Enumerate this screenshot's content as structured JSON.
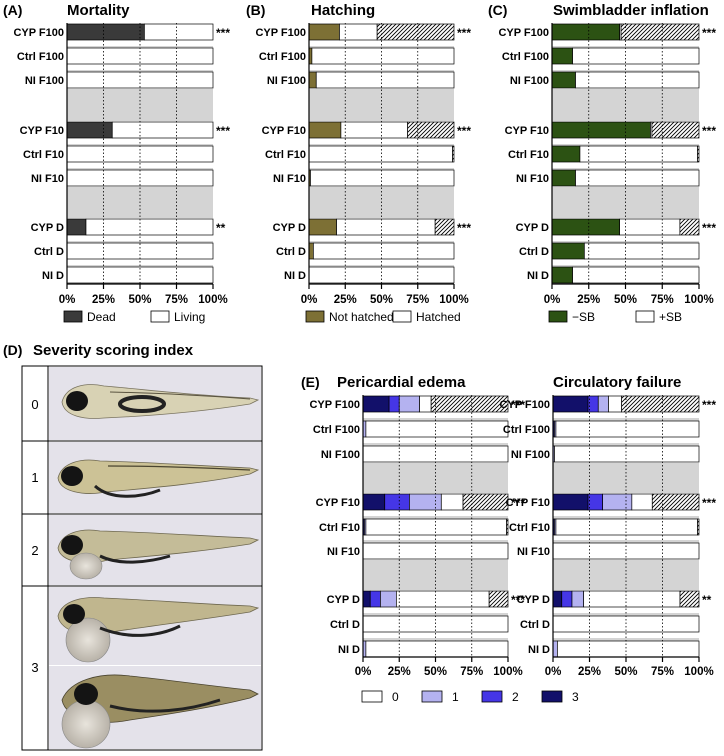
{
  "colors": {
    "dead": "#3a3a3a",
    "not_hatched": "#7d7035",
    "no_sb": "#2c5213",
    "score_1": "#b4b2f0",
    "score_2": "#4536e6",
    "score_3": "#12106a",
    "band": "#d4d4d4",
    "white": "#ffffff"
  },
  "severity": {
    "panel_label": "(D)",
    "title": "Severity scoring index",
    "scores": [
      "0",
      "1",
      "2",
      "3"
    ],
    "images": [
      "zebrafish-larva-score-0",
      "zebrafish-larva-score-1",
      "zebrafish-larva-score-2",
      "zebrafish-larva-score-3a",
      "zebrafish-larva-score-3b"
    ]
  },
  "legend_e": [
    "0",
    "1",
    "2",
    "3"
  ],
  "chart_data": [
    {
      "id": "A",
      "panel_label": "(A)",
      "title": "Mortality",
      "type": "bar",
      "orientation": "horizontal",
      "stacked": true,
      "categories": [
        "CYP F100",
        "Ctrl F100",
        "NI F100",
        "CYP F10",
        "Ctrl F10",
        "NI F10",
        "CYP D",
        "Ctrl D",
        "NI D"
      ],
      "significance": [
        "***",
        "",
        "",
        "***",
        "",
        "",
        "**",
        "",
        ""
      ],
      "series": [
        {
          "name": "Dead",
          "color": "#3a3a3a",
          "values": [
            53,
            0,
            0,
            31,
            0,
            0,
            13,
            0,
            0
          ]
        },
        {
          "name": "Living",
          "color": "#ffffff",
          "values": [
            47,
            100,
            100,
            69,
            100,
            100,
            87,
            100,
            100
          ]
        }
      ],
      "legend": [
        "Dead",
        "Living"
      ],
      "xticks": [
        "0%",
        "25%",
        "50%",
        "75%",
        "100%"
      ],
      "xlim": [
        0,
        100
      ]
    },
    {
      "id": "B",
      "panel_label": "(B)",
      "title": "Hatching",
      "type": "bar",
      "orientation": "horizontal",
      "stacked": true,
      "categories": [
        "CYP F100",
        "Ctrl F100",
        "NI F100",
        "CYP F10",
        "Ctrl F10",
        "NI F10",
        "CYP D",
        "Ctrl D",
        "NI D"
      ],
      "significance": [
        "***",
        "",
        "",
        "***",
        "",
        "",
        "***",
        "",
        ""
      ],
      "series": [
        {
          "name": "Not hatched",
          "color": "#7d7035",
          "values": [
            21,
            2,
            5,
            22,
            0,
            1,
            19,
            3,
            0
          ]
        },
        {
          "name": "Hatched",
          "color": "#ffffff",
          "values": [
            26,
            98,
            95,
            46,
            99,
            99,
            68,
            97,
            100
          ]
        },
        {
          "name": "dead",
          "color": "hatch",
          "values": [
            53,
            0,
            0,
            32,
            1,
            0,
            13,
            0,
            0
          ]
        }
      ],
      "legend": [
        "Not hatched",
        "Hatched"
      ],
      "xticks": [
        "0%",
        "25%",
        "50%",
        "75%",
        "100%"
      ],
      "xlim": [
        0,
        100
      ]
    },
    {
      "id": "C",
      "panel_label": "(C)",
      "title": "Swimbladder inflation",
      "type": "bar",
      "orientation": "horizontal",
      "stacked": true,
      "categories": [
        "CYP F100",
        "Ctrl F100",
        "NI F100",
        "CYP F10",
        "Ctrl F10",
        "NI F10",
        "CYP D",
        "Ctrl D",
        "NI D"
      ],
      "significance": [
        "***",
        "",
        "",
        "***",
        "",
        "",
        "***",
        "",
        ""
      ],
      "series": [
        {
          "name": "−SB",
          "color": "#2c5213",
          "values": [
            46,
            14,
            16,
            67,
            19,
            16,
            46,
            22,
            14
          ]
        },
        {
          "name": "+SB",
          "color": "#ffffff",
          "values": [
            1,
            86,
            84,
            1,
            80,
            84,
            41,
            78,
            86
          ]
        },
        {
          "name": "dead",
          "color": "hatch",
          "values": [
            53,
            0,
            0,
            32,
            1,
            0,
            13,
            0,
            0
          ]
        }
      ],
      "legend": [
        "−SB",
        "+SB"
      ],
      "xticks": [
        "0%",
        "25%",
        "50%",
        "75%",
        "100%"
      ],
      "xlim": [
        0,
        100
      ]
    },
    {
      "id": "E1",
      "panel_label": "(E)",
      "title": "Pericardial edema",
      "type": "bar",
      "orientation": "horizontal",
      "stacked": true,
      "categories": [
        "CYP F100",
        "Ctrl F100",
        "NI F100",
        "CYP F10",
        "Ctrl F10",
        "NI F10",
        "CYP D",
        "Ctrl D",
        "NI D"
      ],
      "significance": [
        "***",
        "",
        "",
        "***",
        "",
        "",
        "***",
        "",
        ""
      ],
      "series": [
        {
          "name": "3",
          "color": "#12106a",
          "values": [
            18,
            0,
            0,
            15,
            1,
            0,
            5,
            0,
            0
          ]
        },
        {
          "name": "2",
          "color": "#4536e6",
          "values": [
            7,
            0,
            0,
            17,
            0,
            0,
            7,
            0,
            0
          ]
        },
        {
          "name": "1",
          "color": "#b4b2f0",
          "values": [
            14,
            2,
            0,
            22,
            1,
            0,
            11,
            0,
            2
          ]
        },
        {
          "name": "0",
          "color": "#ffffff",
          "values": [
            8,
            98,
            100,
            15,
            97,
            100,
            64,
            100,
            98
          ]
        },
        {
          "name": "dead",
          "color": "hatch",
          "values": [
            53,
            0,
            0,
            31,
            1,
            0,
            13,
            0,
            0
          ]
        }
      ],
      "xticks": [
        "0%",
        "25%",
        "50%",
        "75%",
        "100%"
      ],
      "xlim": [
        0,
        100
      ]
    },
    {
      "id": "E2",
      "panel_label": "",
      "title": "Circulatory failure",
      "type": "bar",
      "orientation": "horizontal",
      "stacked": true,
      "categories": [
        "CYP F100",
        "Ctrl F100",
        "NI F100",
        "CYP F10",
        "Ctrl F10",
        "NI F10",
        "CYP D",
        "Ctrl D",
        "NI D"
      ],
      "significance": [
        "***",
        "",
        "",
        "***",
        "",
        "",
        "**",
        "",
        ""
      ],
      "series": [
        {
          "name": "3",
          "color": "#12106a",
          "values": [
            24,
            1,
            0,
            24,
            1,
            0,
            6,
            0,
            0
          ]
        },
        {
          "name": "2",
          "color": "#4536e6",
          "values": [
            7,
            0,
            0,
            10,
            0,
            0,
            7,
            0,
            0
          ]
        },
        {
          "name": "1",
          "color": "#b4b2f0",
          "values": [
            7,
            1,
            1,
            20,
            1,
            0,
            8,
            0,
            3
          ]
        },
        {
          "name": "0",
          "color": "#ffffff",
          "values": [
            9,
            98,
            99,
            14,
            97,
            100,
            66,
            100,
            97
          ]
        },
        {
          "name": "dead",
          "color": "hatch",
          "values": [
            53,
            0,
            0,
            32,
            1,
            0,
            13,
            0,
            0
          ]
        }
      ],
      "xticks": [
        "0%",
        "25%",
        "50%",
        "75%",
        "100%"
      ],
      "xlim": [
        0,
        100
      ]
    }
  ]
}
